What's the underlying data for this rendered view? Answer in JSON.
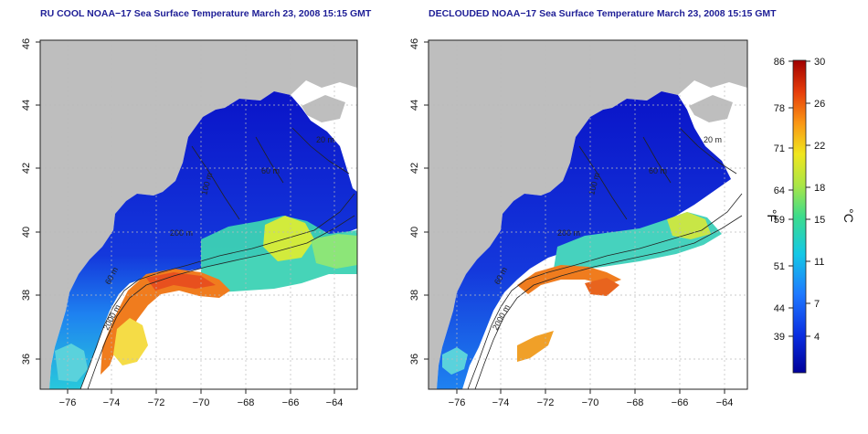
{
  "maps": [
    {
      "title": "RU COOL NOAA−17 Sea Surface Temperature March 23, 2008 15:15 GMT",
      "x_ticks": [
        "−76",
        "−74",
        "−72",
        "−70",
        "−68",
        "−66",
        "−64"
      ],
      "y_ticks": [
        "36",
        "38",
        "40",
        "42",
        "44",
        "46"
      ],
      "contour_labels": [
        "200 m",
        "2000 m",
        "60 m",
        "100 m",
        "60 m",
        "20 m"
      ]
    },
    {
      "title": "DECLOUDED NOAA−17 Sea Surface Temperature March 23, 2008 15:15 GMT",
      "x_ticks": [
        "−76",
        "−74",
        "−72",
        "−70",
        "−68",
        "−66",
        "−64"
      ],
      "y_ticks": [
        "36",
        "38",
        "40",
        "42",
        "44",
        "46"
      ],
      "contour_labels": [
        "200 m",
        "2000 m",
        "60 m",
        "100 m",
        "60 m",
        "20 m"
      ]
    }
  ],
  "colorbar": {
    "fahrenheit_ticks": [
      "86",
      "78",
      "71",
      "64",
      "59",
      "51",
      "44",
      "39"
    ],
    "celsius_ticks": [
      "30",
      "26",
      "22",
      "18",
      "15",
      "11",
      "7",
      "4"
    ],
    "fahrenheit_unit": "°F",
    "celsius_unit": "°C"
  },
  "colors": {
    "land": "#bebebe",
    "cold": "#0a1ecc",
    "warm": "#e8641e",
    "title": "#1e1e96"
  }
}
